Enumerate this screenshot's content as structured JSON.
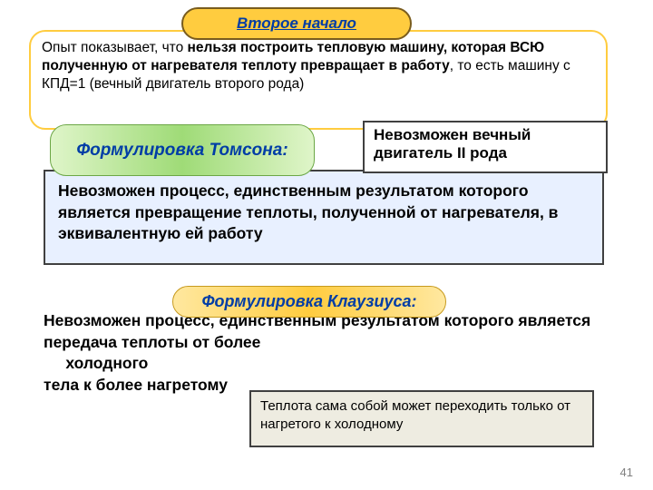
{
  "title": "Второе начало",
  "intro": {
    "pre": "Опыт показывает, что ",
    "bold": "нельзя построить тепловую машину, которая ВСЮ полученную от нагревателя теплоту превращает в работу",
    "post": ", то есть машину с КПД=1 (вечный двигатель второго рода)"
  },
  "thomson_label": "Формулировка Томсона:",
  "impossible_box": "Невозможен вечный двигатель II рода",
  "thomson_text": "Невозможен  процесс,  единственным  результатом  которого является  превращение  теплоты,  полученной  от нагревателя,  в  эквивалентную  ей  работу",
  "clausius_label": "Формулировка Клаузиуса:",
  "clausius_text_l1": "Невозможен  процесс,  единственным  результатом  которого является  передача  теплоты  от  более",
  "clausius_text_l2": "холодного",
  "clausius_text_l3": " тела  к более  нагретому",
  "heat_note": "Теплота сама собой может переходить только от нагретого к холодному",
  "page": "41",
  "colors": {
    "title_bg": "#ffcc3f",
    "title_border": "#795c1e",
    "title_text": "#003da6",
    "green_grad_a": "#dff5c9",
    "green_grad_b": "#9fdb77",
    "blue_box_bg": "#e8f0ff",
    "yellow_grad_a": "#ffe8a0",
    "yellow_grad_b": "#ffcc3f",
    "heat_bg": "#eeece1",
    "border_dark": "#404040"
  }
}
